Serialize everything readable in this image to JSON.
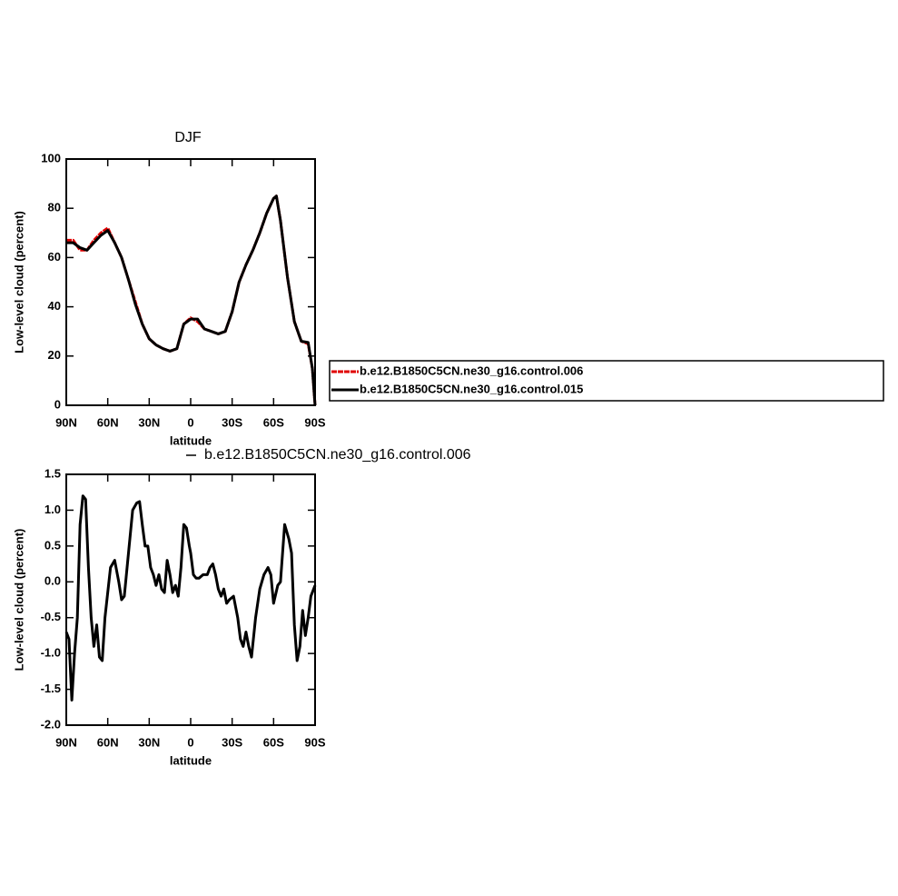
{
  "chart_data": [
    {
      "type": "line",
      "title": "DJF",
      "x_label": "latitude",
      "y_label": "Low-level cloud (percent)",
      "xlim": [
        90,
        -90
      ],
      "xticks": [
        {
          "value": 90,
          "label": "90N"
        },
        {
          "value": 60,
          "label": "60N"
        },
        {
          "value": 30,
          "label": "30N"
        },
        0,
        {
          "value": -30,
          "label": "30S"
        },
        {
          "value": -60,
          "label": "60S"
        },
        {
          "value": -90,
          "label": "90S"
        }
      ],
      "ylim": [
        0,
        100
      ],
      "yticks": [
        0,
        20,
        40,
        60,
        80,
        100
      ],
      "x": [
        90,
        85,
        80,
        75,
        70,
        65,
        60,
        55,
        50,
        45,
        40,
        35,
        30,
        25,
        20,
        15,
        10,
        5,
        0,
        -5,
        -10,
        -15,
        -20,
        -25,
        -30,
        -35,
        -40,
        -45,
        -50,
        -55,
        -60,
        -62,
        -65,
        -70,
        -75,
        -80,
        -85,
        -88,
        -90
      ],
      "series": [
        {
          "name": "b.e12.B1850C5CN.ne30_g16.control.006",
          "color": "#e00000",
          "dashed": true,
          "values": [
            67,
            67,
            63,
            63,
            67,
            70,
            72,
            66,
            60,
            51,
            42,
            33,
            27,
            24.5,
            23,
            22,
            23,
            33,
            35.5,
            34,
            31,
            30,
            29,
            30,
            38,
            50,
            57,
            63,
            70,
            78,
            84,
            85,
            75,
            52,
            34,
            26,
            25,
            15,
            0
          ]
        },
        {
          "name": "b.e12.B1850C5CN.ne30_g16.control.015",
          "color": "#000000",
          "dashed": false,
          "values": [
            66,
            66,
            64,
            63,
            66,
            69,
            71,
            66,
            60,
            51,
            41,
            33,
            27,
            24.5,
            23,
            22,
            23,
            33,
            35,
            35,
            31,
            30,
            29,
            30,
            38,
            50,
            57,
            63,
            70,
            78,
            84,
            85,
            75,
            52,
            34,
            26,
            25.5,
            15,
            0
          ]
        }
      ]
    },
    {
      "type": "line",
      "x_label": "latitude",
      "y_label": "Low-level cloud (percent)",
      "xlim": [
        90,
        -90
      ],
      "xticks": [
        {
          "value": 90,
          "label": "90N"
        },
        {
          "value": 60,
          "label": "60N"
        },
        {
          "value": 30,
          "label": "30N"
        },
        0,
        {
          "value": -30,
          "label": "30S"
        },
        {
          "value": -60,
          "label": "60S"
        },
        {
          "value": -90,
          "label": "90S"
        }
      ],
      "ylim": [
        -2.0,
        1.5
      ],
      "yticks": [
        1.5,
        {
          "value": 1.0,
          "label": "1.0"
        },
        0.5,
        {
          "value": 0.0,
          "label": "0.0"
        },
        -0.5,
        {
          "value": -1.0,
          "label": "-1.0"
        },
        -1.5,
        {
          "value": -2.0,
          "label": "-2.0"
        }
      ],
      "x": [
        90,
        88,
        86,
        84,
        82,
        80,
        78,
        76,
        74,
        72,
        70,
        68,
        66,
        64,
        62,
        58,
        55,
        52,
        50,
        48,
        45,
        42,
        39,
        37,
        35,
        33,
        31,
        29,
        27,
        25,
        23,
        21,
        19,
        17,
        15,
        13,
        11,
        9,
        7,
        5,
        3,
        1,
        0,
        -2,
        -4,
        -6,
        -9,
        -12,
        -14,
        -16,
        -18,
        -20,
        -22,
        -24,
        -26,
        -28,
        -31,
        -34,
        -36,
        -38,
        -40,
        -42,
        -44,
        -47,
        -50,
        -53,
        -56,
        -58,
        -60,
        -63,
        -65,
        -68,
        -71,
        -73,
        -75,
        -77,
        -79,
        -81,
        -83,
        -85,
        -87,
        -90
      ],
      "series": [
        {
          "name": "b.e12.B1850C5CN.ne30_g16.control.006",
          "color": "#000000",
          "dashed": false,
          "values": [
            -0.7,
            -0.8,
            -1.65,
            -1.0,
            -0.5,
            0.8,
            1.2,
            1.15,
            0.2,
            -0.5,
            -0.9,
            -0.6,
            -1.05,
            -1.1,
            -0.5,
            0.2,
            0.3,
            0.0,
            -0.25,
            -0.2,
            0.4,
            1.0,
            1.1,
            1.12,
            0.8,
            0.5,
            0.5,
            0.2,
            0.1,
            -0.05,
            0.1,
            -0.1,
            -0.15,
            0.3,
            0.1,
            -0.15,
            -0.05,
            -0.2,
            0.2,
            0.8,
            0.75,
            0.5,
            0.4,
            0.1,
            0.05,
            0.05,
            0.1,
            0.1,
            0.2,
            0.25,
            0.1,
            -0.1,
            -0.2,
            -0.1,
            -0.3,
            -0.25,
            -0.2,
            -0.5,
            -0.8,
            -0.9,
            -0.7,
            -0.9,
            -1.05,
            -0.5,
            -0.1,
            0.1,
            0.2,
            0.1,
            -0.3,
            -0.05,
            0.0,
            0.8,
            0.6,
            0.4,
            -0.6,
            -1.1,
            -0.9,
            -0.4,
            -0.75,
            -0.5,
            -0.2,
            -0.05
          ]
        }
      ]
    }
  ]
}
